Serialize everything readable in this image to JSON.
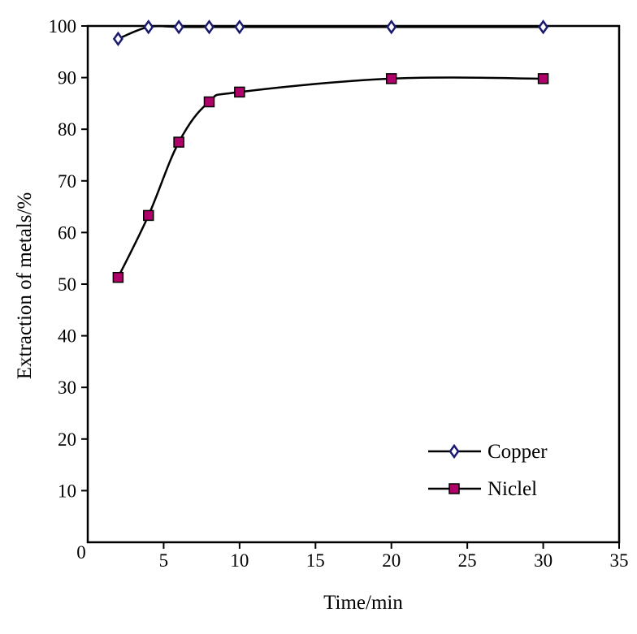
{
  "chart_data": {
    "type": "line",
    "title": "",
    "xlabel": "Time/min",
    "ylabel": "Extraction of metals/%",
    "xlim": [
      0,
      35
    ],
    "ylim": [
      0,
      100
    ],
    "x_ticks": [
      "0",
      "5",
      "10",
      "15",
      "20",
      "25",
      "30",
      "35"
    ],
    "y_ticks": [
      "0",
      "10",
      "20",
      "30",
      "40",
      "50",
      "60",
      "70",
      "80",
      "90",
      "100"
    ],
    "grid": false,
    "legend_position": "bottom-right",
    "series": [
      {
        "name": "Copper",
        "marker": "diamond",
        "marker_fill": "#ffffff",
        "marker_stroke": "#1a1a6e",
        "line_color": "#000000",
        "x": [
          2,
          4,
          6,
          8,
          10,
          20,
          30
        ],
        "y": [
          97.5,
          99.8,
          99.8,
          99.8,
          99.8,
          99.8,
          99.8
        ]
      },
      {
        "name": "Niclel",
        "marker": "square",
        "marker_fill": "#b0006a",
        "marker_stroke": "#000000",
        "line_color": "#000000",
        "x": [
          2,
          4,
          6,
          8,
          10,
          20,
          30
        ],
        "y": [
          51.3,
          63.3,
          77.5,
          85.3,
          87.2,
          89.8,
          89.8
        ]
      }
    ]
  }
}
